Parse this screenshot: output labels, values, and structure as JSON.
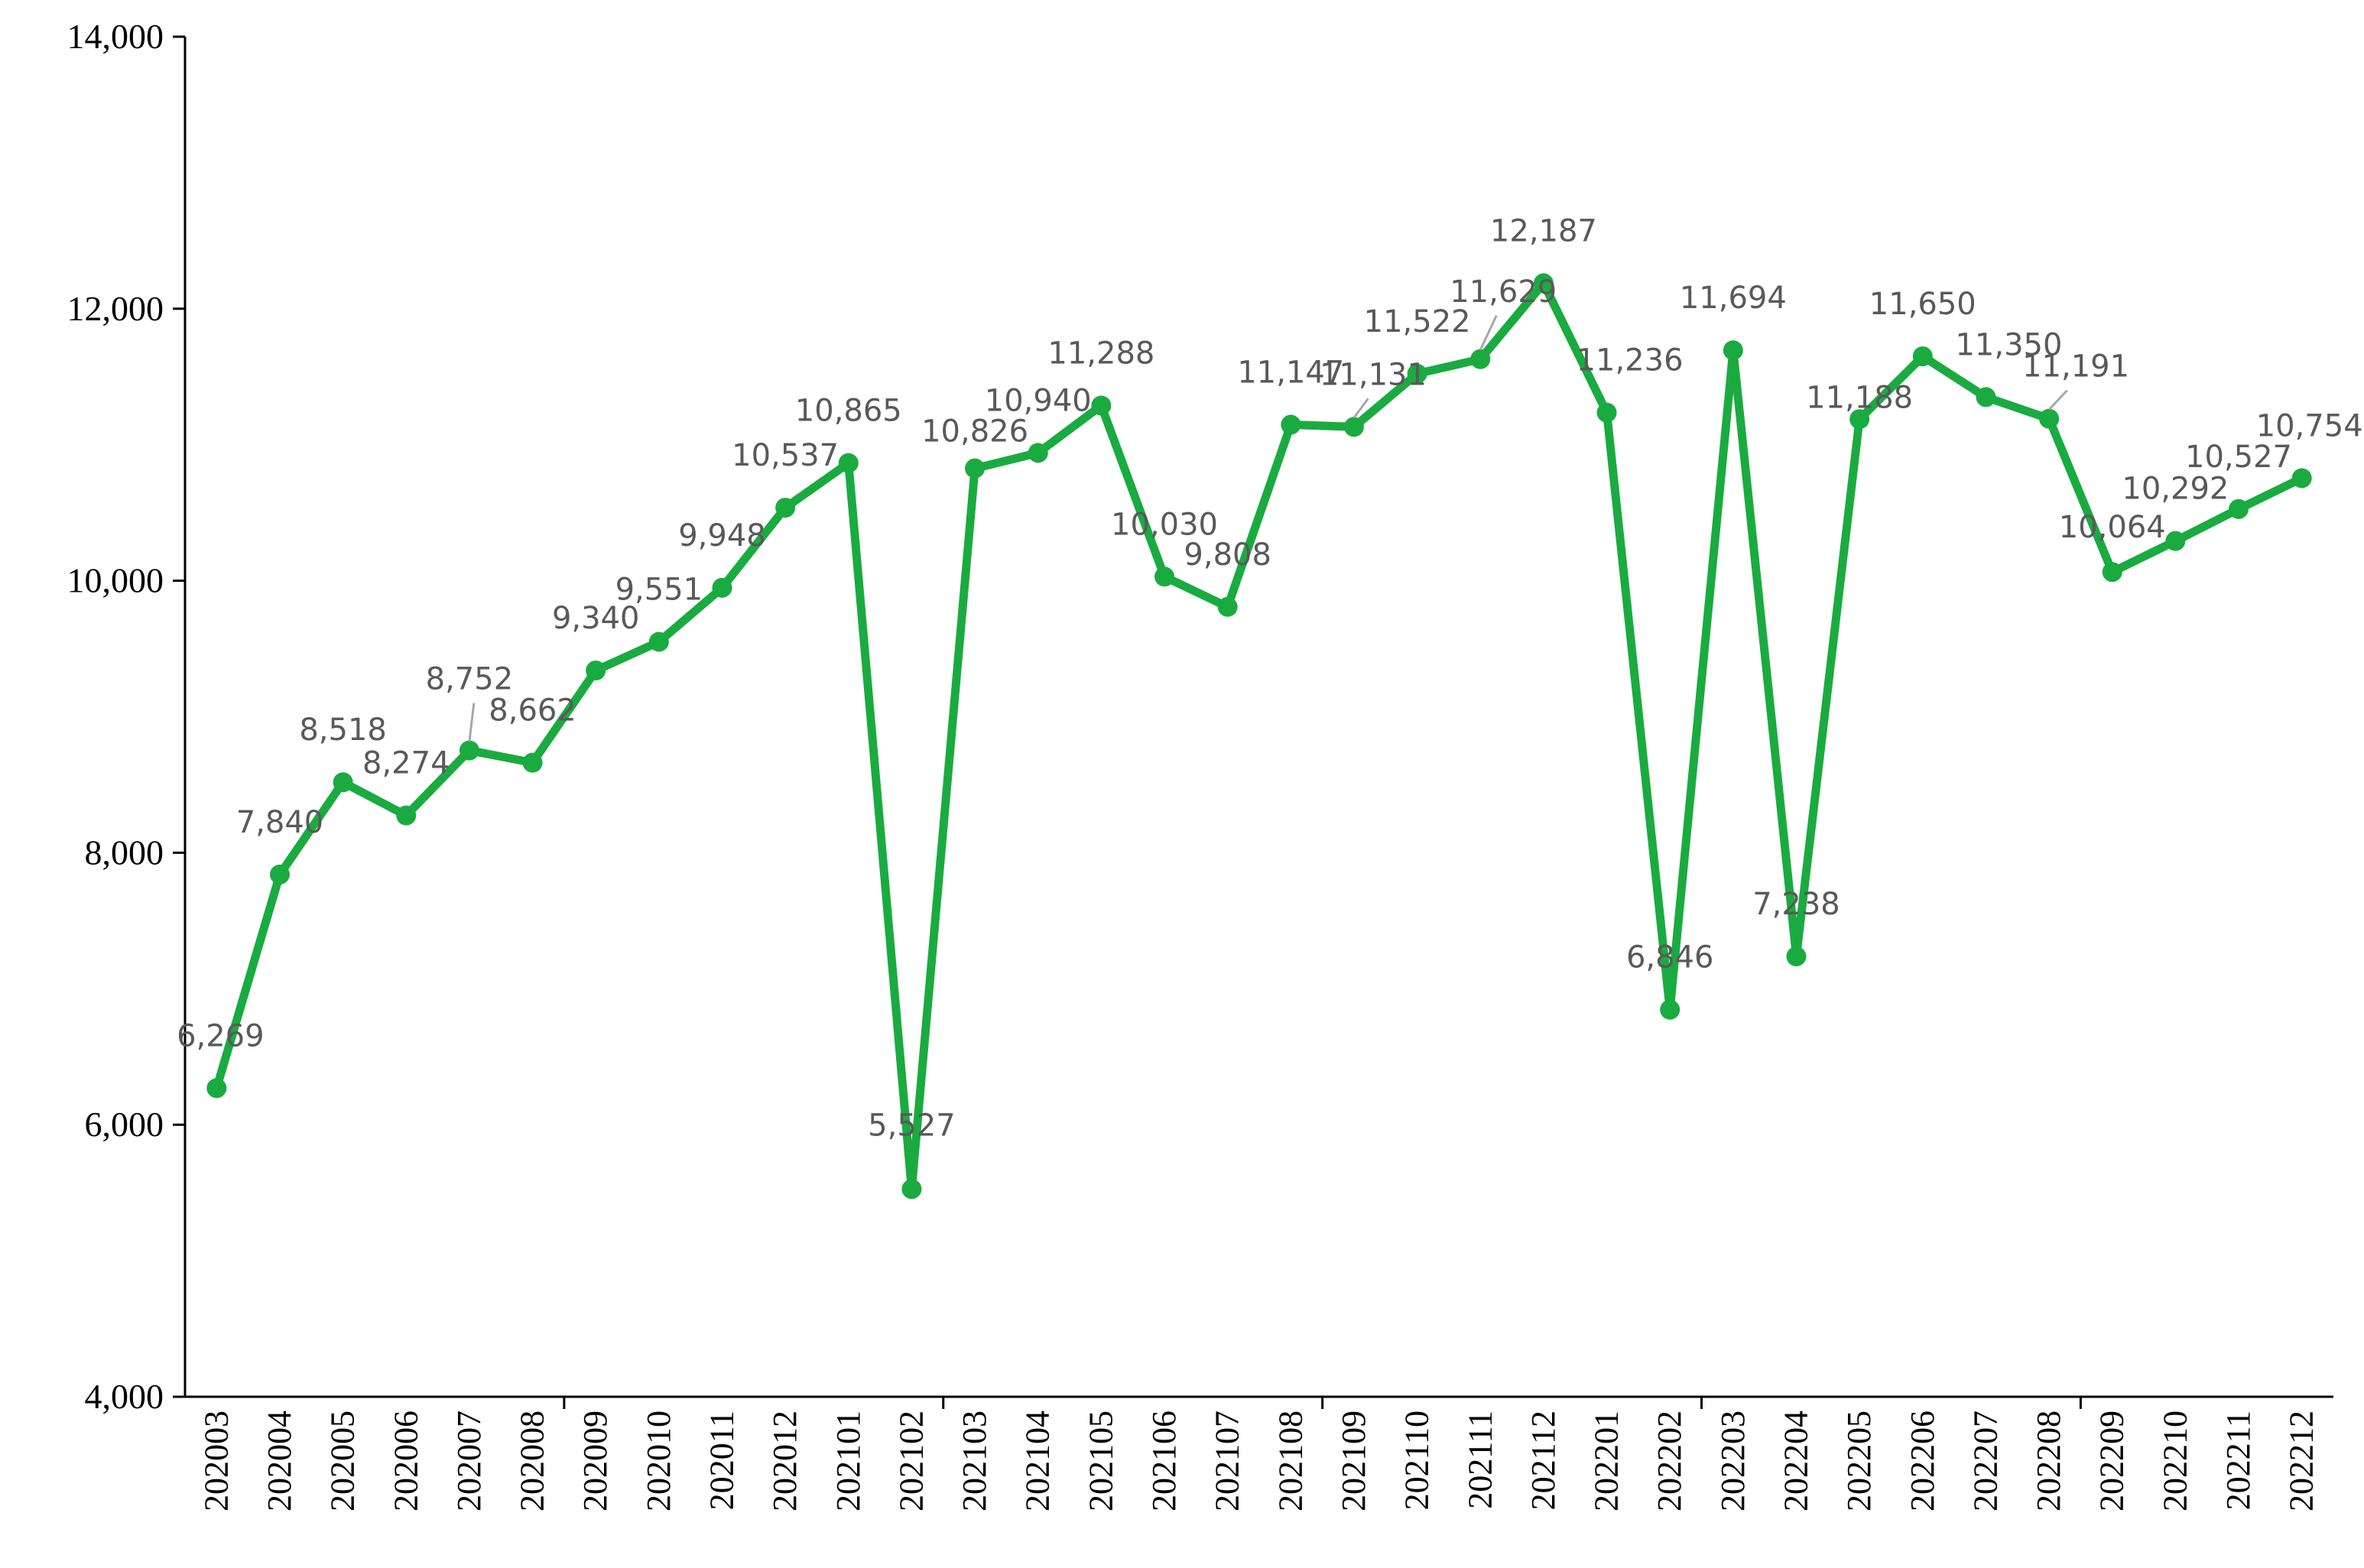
{
  "chart_data": {
    "type": "line",
    "title": "",
    "xlabel": "",
    "ylabel": "",
    "ylim": [
      4000,
      14000
    ],
    "y_ticks": [
      4000,
      6000,
      8000,
      10000,
      12000,
      14000
    ],
    "y_tick_labels": [
      "4,000",
      "6,000",
      "8,000",
      "10,000",
      "12,000",
      "14,000"
    ],
    "grid": false,
    "legend": "none",
    "series_color": "#1aab40",
    "categories": [
      "202003",
      "202004",
      "202005",
      "202006",
      "202007",
      "202008",
      "202009",
      "202010",
      "202011",
      "202012",
      "202101",
      "202102",
      "202103",
      "202104",
      "202105",
      "202106",
      "202107",
      "202108",
      "202109",
      "202110",
      "202111",
      "202112",
      "202201",
      "202202",
      "202203",
      "202204",
      "202205",
      "202206",
      "202207",
      "202208",
      "202209",
      "202210",
      "202211",
      "202212"
    ],
    "series": [
      {
        "values": [
          6269,
          7840,
          8518,
          8274,
          8752,
          8662,
          9340,
          9551,
          9948,
          10537,
          10865,
          5527,
          10826,
          10940,
          11288,
          10030,
          9808,
          11147,
          11131,
          11522,
          11629,
          12187,
          11236,
          6846,
          11694,
          7238,
          11188,
          11650,
          11350,
          11191,
          10064,
          10292,
          10527,
          10754
        ],
        "data_labels": [
          "6,269",
          "7,840",
          "8,518",
          "8,274",
          "8,752",
          "8,662",
          "9,340",
          "9,551",
          "9,948",
          "10,537",
          "10,865",
          "5,527",
          "10,826",
          "10,940",
          "11,288",
          "10,030",
          "9,808",
          "11,147",
          "11,131",
          "11,522",
          "11,629",
          "12,187",
          "11,236",
          "6,846",
          "11,694",
          "7,238",
          "11,188",
          "11,650",
          "11,350",
          "11,191",
          "10,064",
          "10,292",
          "10,527",
          "10,754"
        ]
      }
    ]
  }
}
